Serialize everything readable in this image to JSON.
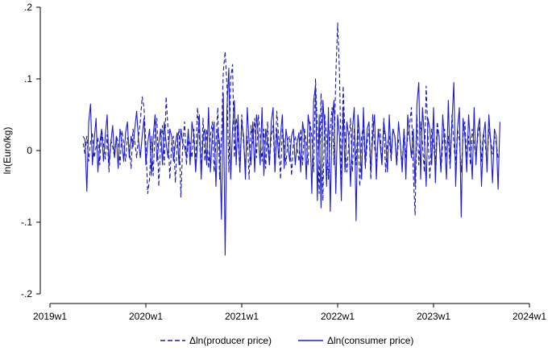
{
  "chart_data": {
    "type": "line",
    "title": "",
    "xlabel": "",
    "ylabel": "ln(Euro/kg)",
    "xlim": [
      0,
      260
    ],
    "ylim": [
      -0.2,
      0.2
    ],
    "x_ticks": [
      {
        "x": 0,
        "label": "2019w1"
      },
      {
        "x": 52,
        "label": "2020w1"
      },
      {
        "x": 104,
        "label": "2021w1"
      },
      {
        "x": 156,
        "label": "2022w1"
      },
      {
        "x": 208,
        "label": "2023w1"
      },
      {
        "x": 260,
        "label": "2024w1"
      }
    ],
    "y_ticks": [
      {
        "y": -0.2,
        "label": "-.2"
      },
      {
        "y": -0.1,
        "label": "-.1"
      },
      {
        "y": 0,
        "label": "0"
      },
      {
        "y": 0.1,
        "label": ".1"
      },
      {
        "y": 0.2,
        "label": ".2"
      }
    ],
    "grid": false,
    "legend_position": "bottom",
    "series": [
      {
        "name": "Δln(producer price)",
        "color": "#1a1aa0",
        "dash": "dashed",
        "start_x": 18,
        "values": [
          0.01,
          -0.005,
          0.02,
          -0.015,
          0.012,
          0.025,
          -0.01,
          0.005,
          0.018,
          -0.02,
          0.03,
          0.01,
          -0.012,
          0.022,
          -0.03,
          0.015,
          0.005,
          -0.008,
          0.02,
          0.012,
          -0.02,
          0.028,
          0.01,
          -0.015,
          0.018,
          0.005,
          -0.025,
          0.03,
          0.012,
          -0.01,
          0.02,
          0.04,
          0.075,
          0.06,
          0.01,
          -0.06,
          -0.04,
          0.02,
          -0.035,
          0.03,
          0.045,
          -0.05,
          0.01,
          0.035,
          -0.02,
          0.075,
          0.03,
          -0.04,
          0.01,
          0.02,
          -0.045,
          0.01,
          0.03,
          -0.065,
          0.01,
          0.04,
          -0.02,
          0.015,
          0.01,
          -0.01,
          0.03,
          -0.02,
          0.06,
          0.02,
          -0.03,
          0.045,
          -0.015,
          0.03,
          -0.025,
          0.02,
          0.04,
          -0.03,
          0.01,
          0.06,
          -0.04,
          0.02,
          0.11,
          0.138,
          0.09,
          -0.03,
          0.1,
          0.12,
          -0.01,
          0.045,
          0.02,
          -0.03,
          0.05,
          0.01,
          -0.02,
          0.02,
          -0.04,
          0.035,
          0.01,
          0.045,
          -0.01,
          0.05,
          0.02,
          -0.015,
          0.03,
          -0.025,
          0.04,
          -0.02,
          0.02,
          0.035,
          -0.03,
          0.055,
          0.02,
          -0.04,
          0.03,
          0.01,
          -0.02,
          0.015,
          0.02,
          -0.035,
          0.01,
          0.02,
          0.005,
          -0.015,
          0.03,
          -0.02,
          0.03,
          0.01,
          -0.02,
          0.04,
          0.02,
          -0.03,
          0.1,
          0.03,
          -0.06,
          0.08,
          -0.07,
          0.05,
          0.02,
          -0.04,
          0.03,
          0.06,
          -0.02,
          0.105,
          0.178,
          0.11,
          -0.04,
          0.09,
          0.02,
          -0.03,
          0.01,
          0.045,
          -0.03,
          0.03,
          -0.02,
          0.04,
          -0.05,
          0.02,
          0.035,
          -0.025,
          0.01,
          0.03,
          -0.04,
          0.05,
          0.005,
          -0.015,
          0.02,
          0.03,
          -0.02,
          0.045,
          -0.03,
          0.01,
          0.02,
          -0.015,
          0.03,
          0.02,
          -0.02,
          0.015,
          0.01,
          -0.02,
          0.03,
          -0.01,
          0.02,
          0.035,
          0.06,
          -0.03,
          -0.09,
          0.05,
          -0.02,
          0.04,
          0.01,
          -0.03,
          0.09,
          0.02,
          -0.04,
          0.03,
          0.01,
          -0.02,
          0.04,
          0.02,
          -0.03,
          0.01,
          0.03,
          -0.01,
          0.02,
          -0.025,
          0.05,
          0.01,
          -0.02,
          0.03,
          0.015,
          -0.03,
          0.02,
          0.04,
          -0.01,
          0.02,
          -0.02,
          0.03,
          0.01,
          -0.01,
          0.02,
          0.035,
          -0.015,
          0.025,
          0.01,
          -0.02,
          0.03,
          0.015,
          -0.005,
          0.02,
          0.01,
          -0.01
        ]
      },
      {
        "name": "Δln(consumer price)",
        "color": "#1a1ad8",
        "dash": "solid",
        "start_x": 18,
        "values": [
          0.02,
          0.015,
          -0.057,
          0.04,
          0.065,
          -0.02,
          0.015,
          0.045,
          -0.03,
          0.01,
          0.03,
          -0.015,
          0.02,
          0.05,
          -0.02,
          0.01,
          0.035,
          -0.01,
          0.02,
          -0.025,
          0.03,
          0.01,
          -0.015,
          0.025,
          0.04,
          -0.01,
          0.02,
          0.005,
          0.03,
          0.055,
          0.015,
          -0.01,
          0.02,
          0.045,
          -0.02,
          0.01,
          0.03,
          -0.035,
          0.02,
          0.05,
          -0.015,
          0.01,
          0.03,
          -0.02,
          0.04,
          0.01,
          -0.01,
          0.03,
          0.02,
          -0.015,
          0.01,
          0.025,
          -0.02,
          0.03,
          0.01,
          0.005,
          -0.01,
          0.03,
          -0.02,
          0.04,
          0.02,
          -0.03,
          0.01,
          0.05,
          -0.04,
          0.02,
          0.03,
          -0.02,
          0.06,
          -0.03,
          0.02,
          0.04,
          -0.05,
          0.03,
          0.01,
          -0.096,
          0.08,
          -0.146,
          0.06,
          0.115,
          -0.04,
          0.03,
          0.07,
          -0.02,
          0.05,
          -0.03,
          0.04,
          0.02,
          -0.04,
          0.06,
          0.01,
          -0.02,
          0.04,
          -0.03,
          0.05,
          0.02,
          -0.02,
          0.06,
          -0.035,
          0.03,
          0.01,
          -0.02,
          0.04,
          0.06,
          -0.03,
          0.03,
          -0.01,
          0.02,
          0.05,
          -0.025,
          0.03,
          0.01,
          -0.015,
          0.02,
          0.03,
          -0.02,
          0.01,
          0.025,
          -0.03,
          0.04,
          0.02,
          -0.04,
          0.05,
          0.03,
          -0.06,
          0.07,
          0.09,
          -0.07,
          0.05,
          -0.08,
          0.07,
          0.03,
          -0.05,
          0.06,
          -0.085,
          0.04,
          0.07,
          -0.06,
          0.05,
          0.02,
          -0.07,
          0.06,
          -0.03,
          0.04,
          0.02,
          -0.05,
          0.03,
          0.06,
          -0.098,
          0.05,
          0.02,
          -0.04,
          0.06,
          -0.02,
          0.03,
          0.04,
          -0.03,
          0.02,
          0.05,
          -0.04,
          0.03,
          0.01,
          -0.02,
          0.04,
          0.02,
          -0.03,
          0.05,
          -0.01,
          0.03,
          0.02,
          -0.02,
          0.04,
          0.01,
          -0.03,
          0.03,
          -0.04,
          0.05,
          0.02,
          -0.01,
          0.03,
          -0.05,
          0.065,
          0.095,
          -0.04,
          0.06,
          0.02,
          -0.05,
          0.045,
          0.03,
          -0.02,
          0.06,
          -0.045,
          0.03,
          0.02,
          -0.03,
          0.05,
          0.01,
          -0.04,
          0.07,
          -0.02,
          0.04,
          0.095,
          -0.05,
          0.03,
          0.06,
          -0.093,
          0.045,
          0.02,
          -0.03,
          0.05,
          0.01,
          -0.04,
          0.06,
          -0.02,
          0.03,
          0.045,
          -0.05,
          0.02,
          0.04,
          -0.03,
          0.05,
          0.01,
          -0.045,
          0.03,
          0.02,
          -0.054,
          0.04
        ]
      }
    ]
  }
}
